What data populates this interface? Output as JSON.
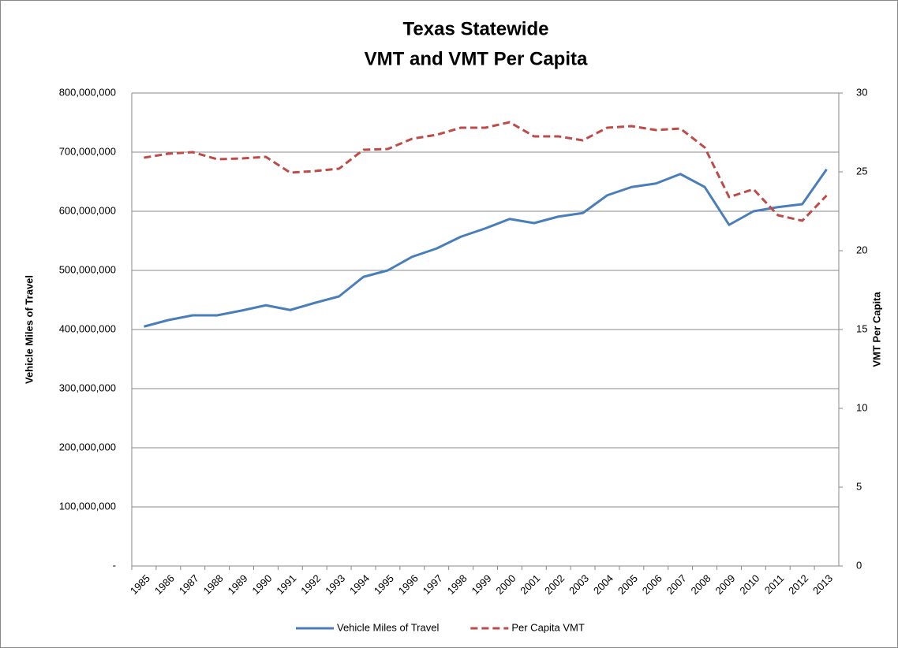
{
  "chart_data": {
    "type": "line",
    "title": [
      "Texas Statewide",
      "VMT and VMT Per Capita"
    ],
    "ylabel": "Vehicle Miles of Travel",
    "y2label": "VMT Per Capita",
    "categories": [
      "1985",
      "1986",
      "1987",
      "1988",
      "1989",
      "1990",
      "1991",
      "1992",
      "1993",
      "1994",
      "1995",
      "1996",
      "1997",
      "1998",
      "1999",
      "2000",
      "2001",
      "2002",
      "2003",
      "2004",
      "2005",
      "2006",
      "2007",
      "2008",
      "2009",
      "2010",
      "2011",
      "2012",
      "2013"
    ],
    "series": [
      {
        "name": "Vehicle Miles of Travel",
        "color": "#4a7ebb",
        "dash": false,
        "values": [
          405000000,
          416000000,
          424000000,
          424000000,
          432000000,
          441000000,
          433000000,
          445000000,
          456000000,
          489000000,
          500000000,
          523000000,
          537000000,
          557000000,
          571000000,
          587000000,
          580000000,
          591000000,
          597000000,
          627000000,
          641000000,
          647000000,
          663000000,
          641000000,
          577000000,
          600000000,
          607000000,
          612000000,
          671000000
        ]
      },
      {
        "name": "Per Capita VMT",
        "color": "#be4b48",
        "dash": true,
        "axis": "y2",
        "values": [
          25.9,
          26.15,
          26.25,
          25.8,
          25.85,
          25.95,
          24.95,
          25.05,
          25.2,
          26.4,
          26.45,
          27.1,
          27.35,
          27.8,
          27.8,
          28.15,
          27.25,
          27.25,
          27.0,
          27.8,
          27.9,
          27.65,
          27.75,
          26.55,
          23.4,
          23.9,
          22.25,
          21.9,
          23.5
        ]
      }
    ],
    "ylim": [
      0,
      800000000
    ],
    "yticks": [
      {
        "value": 0,
        "label": "-"
      },
      {
        "value": 100000000,
        "label": "100,000,000"
      },
      {
        "value": 200000000,
        "label": "200,000,000"
      },
      {
        "value": 300000000,
        "label": "300,000,000"
      },
      {
        "value": 400000000,
        "label": "400,000,000"
      },
      {
        "value": 500000000,
        "label": "500,000,000"
      },
      {
        "value": 600000000,
        "label": "600,000,000"
      },
      {
        "value": 700000000,
        "label": "700,000,000"
      },
      {
        "value": 800000000,
        "label": "800,000,000"
      }
    ],
    "y2lim": [
      0,
      30
    ],
    "y2ticks": [
      0,
      5,
      10,
      15,
      20,
      25,
      30
    ],
    "grid": true,
    "legend": "bottom"
  }
}
